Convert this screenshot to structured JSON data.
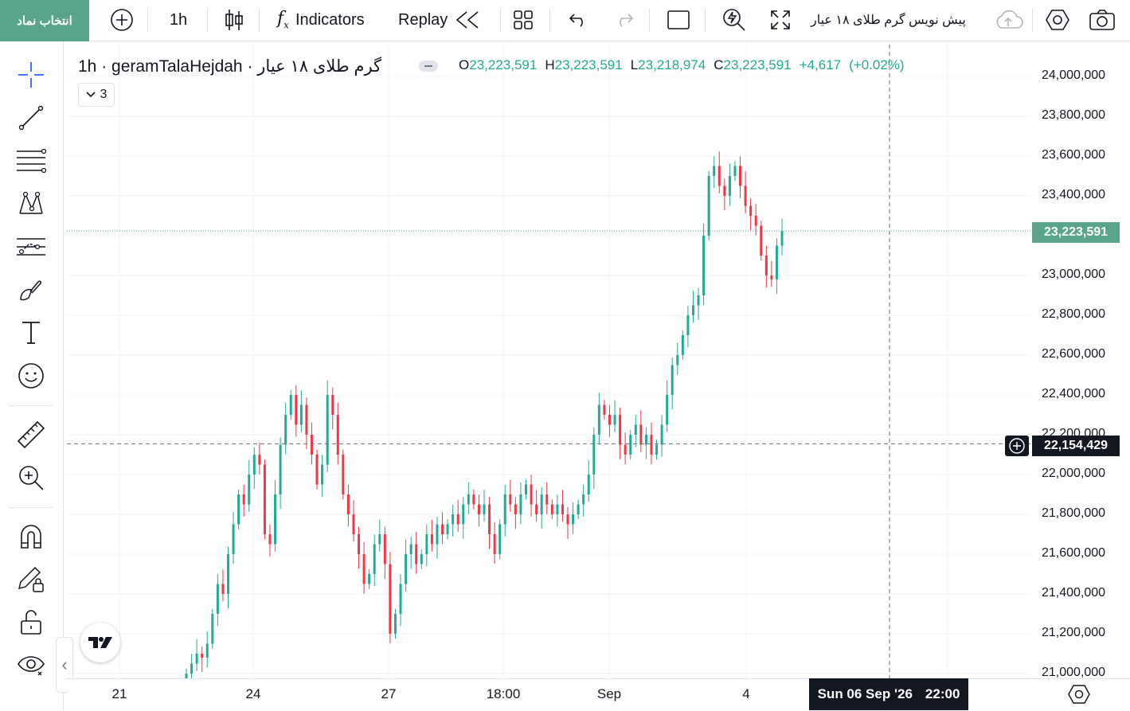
{
  "toolbar": {
    "symbol_button": "انتخاب نماد",
    "interval": "1h",
    "indicators_label": "Indicators",
    "replay_label": "Replay",
    "layout_name": "پیش نویس گرم طلای ۱۸ عیار"
  },
  "legend": {
    "title": "گرم طلای ۱۸ عیار · 1h · geramTalaHejdah",
    "open_key": "O",
    "open": "23,223,591",
    "high_key": "H",
    "high": "23,223,591",
    "low_key": "L",
    "low": "23,218,974",
    "close_key": "C",
    "close": "23,223,591",
    "change": "+4,617",
    "change_pct": "(+0.02%)",
    "indicator_count": "3"
  },
  "price_axis": {
    "ticks": [
      "24,000,000",
      "23,800,000",
      "23,600,000",
      "23,400,000",
      "23,200,000",
      "23,000,000",
      "22,800,000",
      "22,600,000",
      "22,400,000",
      "22,200,000",
      "22,000,000",
      "21,800,000",
      "21,600,000",
      "21,400,000",
      "21,200,000",
      "21,000,000"
    ],
    "last_price": "23,223,591",
    "crosshair_price": "22,154,429"
  },
  "time_axis": {
    "ticks": [
      "21",
      "24",
      "27",
      "18:00",
      "Sep",
      "4"
    ],
    "crosshair_date": "Sun 06 Sep '26",
    "crosshair_time": "22:00"
  },
  "colors": {
    "up": "#22ab94",
    "down": "#f23645",
    "accent": "#5aa58a",
    "text": "#131722"
  },
  "chart_data": {
    "type": "candlestick",
    "title": "گرم طلای ۱۸ عیار · 1h · geramTalaHejdah",
    "xlabel": "",
    "ylabel": "",
    "ylim": [
      21000000,
      24000000
    ],
    "x_ticks": [
      "21",
      "24",
      "27",
      "18:00",
      "Sep",
      "4"
    ],
    "close_series": [
      21000000,
      21050000,
      21100000,
      21080000,
      21150000,
      21300000,
      21450000,
      21400000,
      21600000,
      21750000,
      21900000,
      21850000,
      22000000,
      22100000,
      22050000,
      21700000,
      21650000,
      21900000,
      22150000,
      22300000,
      22400000,
      22250000,
      22350000,
      22200000,
      22100000,
      21950000,
      22050000,
      22400000,
      22300000,
      22100000,
      21900000,
      21800000,
      21700000,
      21600000,
      21450000,
      21500000,
      21650000,
      21700000,
      21550000,
      21200000,
      21300000,
      21450000,
      21600000,
      21650000,
      21550000,
      21600000,
      21700000,
      21650000,
      21750000,
      21700000,
      21750000,
      21800000,
      21750000,
      21850000,
      21900000,
      21850000,
      21800000,
      21850000,
      21700000,
      21600000,
      21750000,
      21900000,
      21850000,
      21800000,
      21900000,
      21950000,
      21850000,
      21800000,
      21900000,
      21850000,
      21800000,
      21850000,
      21800000,
      21750000,
      21800000,
      21850000,
      21900000,
      22000000,
      22200000,
      22350000,
      22300000,
      22250000,
      22300000,
      22150000,
      22100000,
      22200000,
      22250000,
      22150000,
      22200000,
      22100000,
      22150000,
      22250000,
      22400000,
      22550000,
      22600000,
      22700000,
      22800000,
      22850000,
      22900000,
      23200000,
      23500000,
      23550000,
      23450000,
      23400000,
      23500000,
      23550000,
      23450000,
      23350000,
      23300000,
      23250000,
      23100000,
      23000000,
      22980000,
      23150000,
      23223591
    ]
  }
}
